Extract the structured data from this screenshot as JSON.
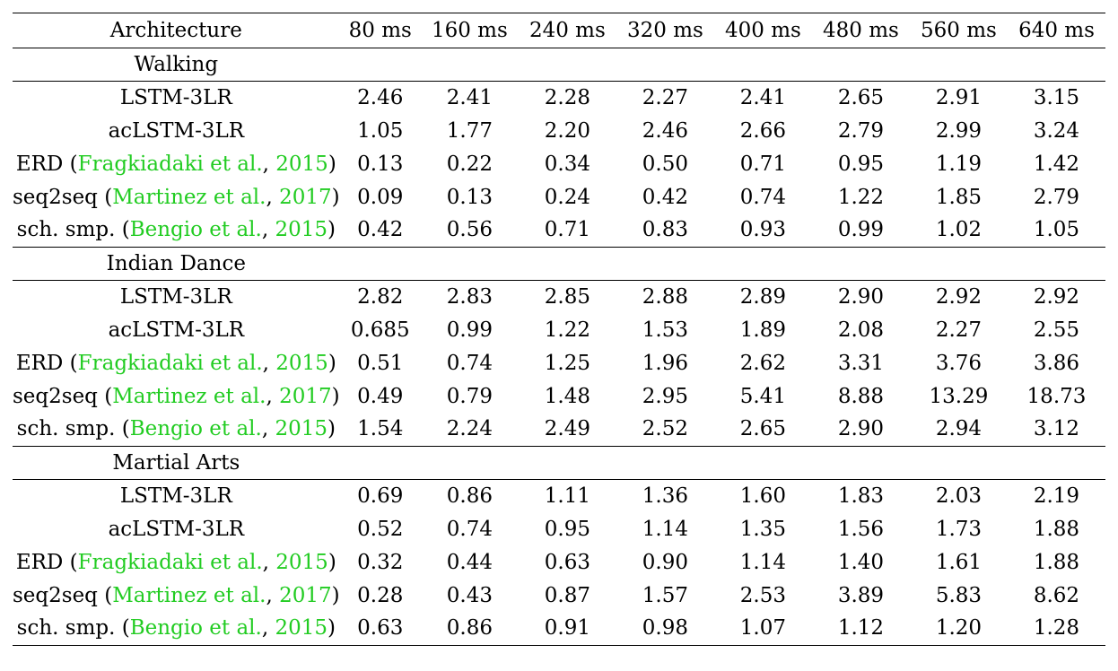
{
  "table": {
    "header": [
      "Architecture",
      "80 ms",
      "160 ms",
      "240 ms",
      "320 ms",
      "400 ms",
      "480 ms",
      "560 ms",
      "640 ms"
    ],
    "sections": [
      {
        "title": "Walking",
        "rows": [
          {
            "arch": "LSTM-3LR",
            "values": [
              "2.46",
              "2.41",
              "2.28",
              "2.27",
              "2.41",
              "2.65",
              "2.91",
              "3.15"
            ],
            "bold": []
          },
          {
            "arch": "acLSTM-3LR",
            "values": [
              "1.05",
              "1.77",
              "2.20",
              "2.46",
              "2.66",
              "2.79",
              "2.99",
              "3.24"
            ],
            "bold": []
          },
          {
            "arch": "ERD",
            "cite_author": "Fragkiadaki et al.",
            "cite_year": "2015",
            "values": [
              "0.13",
              "0.22",
              "0.34",
              "0.50",
              "0.71",
              "0.95",
              "1.19",
              "1.42"
            ],
            "bold": [
              4,
              5
            ]
          },
          {
            "arch": "seq2seq",
            "cite_author": "Martinez et al.",
            "cite_year": "2017",
            "values": [
              "0.09",
              "0.13",
              "0.24",
              "0.42",
              "0.74",
              "1.22",
              "1.85",
              "2.79"
            ],
            "bold": [
              0,
              1,
              2,
              3
            ]
          },
          {
            "arch": "sch. smp.",
            "cite_author": "Bengio et al.",
            "cite_year": "2015",
            "values": [
              "0.42",
              "0.56",
              "0.71",
              "0.83",
              "0.93",
              "0.99",
              "1.02",
              "1.05"
            ],
            "bold": [
              6,
              7
            ]
          }
        ]
      },
      {
        "title": "Indian Dance",
        "rows": [
          {
            "arch": "LSTM-3LR",
            "values": [
              "2.82",
              "2.83",
              "2.85",
              "2.88",
              "2.89",
              "2.90",
              "2.92",
              "2.92"
            ],
            "bold": []
          },
          {
            "arch": "acLSTM-3LR",
            "values": [
              "0.685",
              "0.99",
              "1.22",
              "1.53",
              "1.89",
              "2.08",
              "2.27",
              "2.55"
            ],
            "bold": [
              2,
              3,
              4,
              5,
              6,
              7
            ]
          },
          {
            "arch": "ERD",
            "cite_author": "Fragkiadaki et al.",
            "cite_year": "2015",
            "values": [
              "0.51",
              "0.74",
              "1.25",
              "1.96",
              "2.62",
              "3.31",
              "3.76",
              "3.86"
            ],
            "bold": [
              1
            ]
          },
          {
            "arch": "seq2seq",
            "cite_author": "Martinez et al.",
            "cite_year": "2017",
            "values": [
              "0.49",
              "0.79",
              "1.48",
              "2.95",
              "5.41",
              "8.88",
              "13.29",
              "18.73"
            ],
            "bold": [
              0
            ]
          },
          {
            "arch": "sch. smp.",
            "cite_author": "Bengio et al.",
            "cite_year": "2015",
            "values": [
              "1.54",
              "2.24",
              "2.49",
              "2.52",
              "2.65",
              "2.90",
              "2.94",
              "3.12"
            ],
            "bold": []
          }
        ]
      },
      {
        "title": "Martial Arts",
        "rows": [
          {
            "arch": "LSTM-3LR",
            "values": [
              "0.69",
              "0.86",
              "1.11",
              "1.36",
              "1.60",
              "1.83",
              "2.03",
              "2.19"
            ],
            "bold": []
          },
          {
            "arch": "acLSTM-3LR",
            "values": [
              "0.52",
              "0.74",
              "0.95",
              "1.14",
              "1.35",
              "1.56",
              "1.73",
              "1.88"
            ],
            "bold": []
          },
          {
            "arch": "ERD",
            "cite_author": "Fragkiadaki et al.",
            "cite_year": "2015",
            "values": [
              "0.32",
              "0.44",
              "0.63",
              "0.90",
              "1.14",
              "1.40",
              "1.61",
              "1.88"
            ],
            "bold": [
              2,
              3
            ]
          },
          {
            "arch": "seq2seq",
            "cite_author": "Martinez et al.",
            "cite_year": "2017",
            "values": [
              "0.28",
              "0.43",
              "0.87",
              "1.57",
              "2.53",
              "3.89",
              "5.83",
              "8.62"
            ],
            "bold": [
              0,
              1
            ]
          },
          {
            "arch": "sch. smp.",
            "cite_author": "Bengio et al.",
            "cite_year": "2015",
            "values": [
              "0.63",
              "0.86",
              "0.91",
              "0.98",
              "1.07",
              "1.12",
              "1.20",
              "1.28"
            ],
            "bold": [
              4,
              5,
              6,
              7
            ]
          }
        ]
      }
    ],
    "colors": {
      "citation": "#22cc22",
      "text": "#000000",
      "rules": "#000000"
    }
  }
}
